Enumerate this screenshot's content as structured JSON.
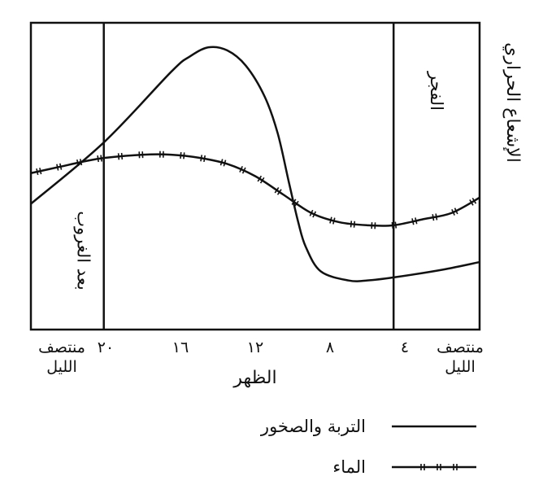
{
  "chart_data": {
    "type": "line",
    "xlabel": "الظهر",
    "ylabel": "الإشعاع الحراري",
    "x_ticks": [
      {
        "value": 24,
        "label": "منتصف\nالليل"
      },
      {
        "value": 20,
        "label": "٢٠"
      },
      {
        "value": 16,
        "label": "١٦"
      },
      {
        "value": 12,
        "label": "١٢"
      },
      {
        "value": 8,
        "label": "٨"
      },
      {
        "value": 4,
        "label": "٤"
      },
      {
        "value": 0,
        "label": "منتصف\nالليل"
      }
    ],
    "x_range": [
      24,
      0
    ],
    "y_range": [
      0,
      100
    ],
    "markers": [
      {
        "x": 20.1,
        "label": "بعد الغروب"
      },
      {
        "x": 4.6,
        "label": "الفجر"
      }
    ],
    "series": [
      {
        "name": "التربة والصخور",
        "style": "solid",
        "x": [
          24,
          20.1,
          16.5,
          15.5,
          14.5,
          13.5,
          12.5,
          11.5,
          10.8,
          10.2,
          9.7,
          9.3,
          8.5,
          7,
          6,
          4.6,
          2,
          0
        ],
        "y": [
          41,
          61,
          84,
          89,
          92,
          91,
          86,
          76,
          64,
          48,
          35,
          27,
          19,
          16,
          16,
          17,
          19.5,
          22
        ]
      },
      {
        "name": "الماء",
        "style": "hatched",
        "x": [
          24,
          22.5,
          21,
          20,
          18,
          16.5,
          15,
          13.5,
          12,
          10.5,
          9,
          7.5,
          6,
          4.6,
          3,
          1.5,
          0
        ],
        "y": [
          51,
          53,
          55,
          56,
          57,
          57,
          56,
          54,
          50,
          44,
          38,
          35,
          34,
          34,
          36,
          38,
          43
        ]
      }
    ]
  },
  "colors": {
    "line": "#111111",
    "background": "#ffffff"
  }
}
